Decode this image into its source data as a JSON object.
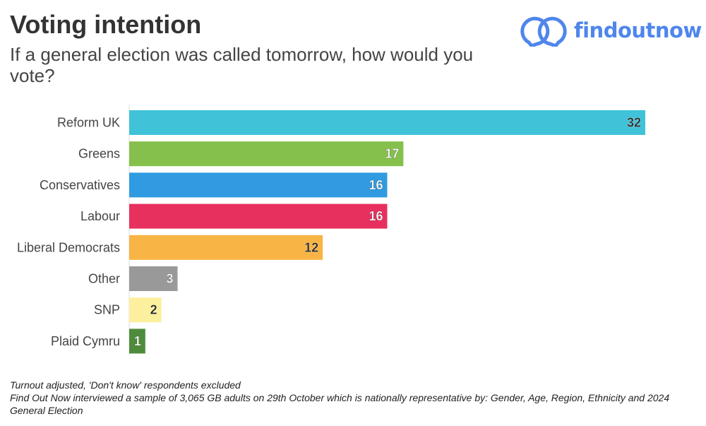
{
  "chart_data": {
    "type": "bar",
    "orientation": "horizontal",
    "title": "Voting intention",
    "subtitle": "If a general election was called tomorrow, how would you vote?",
    "categories": [
      "Reform UK",
      "Greens",
      "Conservatives",
      "Labour",
      "Liberal Democrats",
      "Other",
      "SNP",
      "Plaid Cymru"
    ],
    "values": [
      32,
      17,
      16,
      16,
      12,
      3,
      2,
      1
    ],
    "colors": [
      "#40c3d8",
      "#86c04c",
      "#309be0",
      "#e8305f",
      "#f8b444",
      "#999999",
      "#fcf09e",
      "#4e8c3c"
    ],
    "label_colors": [
      "#222222",
      "#ffffff",
      "#ffffff",
      "#ffffff",
      "#222222",
      "#ffffff",
      "#222222",
      "#ffffff"
    ],
    "xlim": [
      0,
      32
    ],
    "grid": false,
    "data_labels": true
  },
  "logo": {
    "text": "findoutnow",
    "color": "#4f86ec"
  },
  "footer": {
    "line1": "Turnout adjusted, 'Don't know' respondents excluded",
    "line2": "Find Out Now interviewed a sample of 3,065 GB adults on 29th October which is nationally representative by: Gender, Age, Region, Ethnicity and 2024 General Election"
  }
}
